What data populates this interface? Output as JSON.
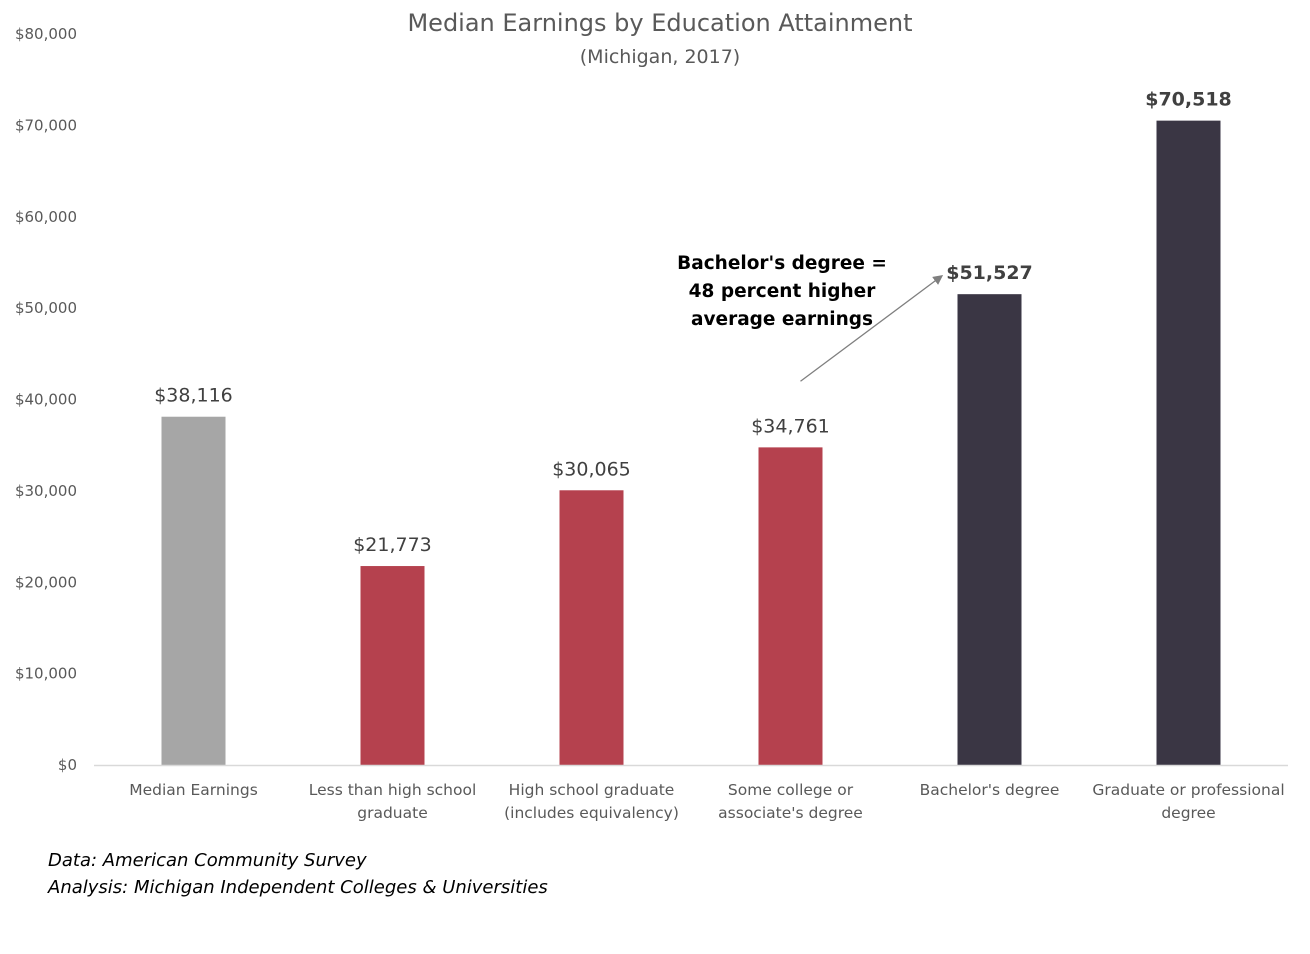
{
  "chart_data": {
    "type": "bar",
    "title": "Median Earnings by Education Attainment",
    "subtitle": "(Michigan, 2017)",
    "categories": [
      [
        "Median Earnings"
      ],
      [
        "Less than high school",
        "graduate"
      ],
      [
        "High school graduate",
        "(includes equivalency)"
      ],
      [
        "Some college or",
        "associate's degree"
      ],
      [
        "Bachelor's degree"
      ],
      [
        "Graduate or professional",
        "degree"
      ]
    ],
    "values": [
      38116,
      21773,
      30065,
      34761,
      51527,
      70518
    ],
    "data_labels": [
      "$38,116",
      "$21,773",
      "$30,065",
      "$34,761",
      "$51,527",
      "$70,518"
    ],
    "bold_labels": [
      false,
      false,
      false,
      false,
      true,
      true
    ],
    "bar_colors": [
      "#a6a6a6",
      "#b5414e",
      "#b5414e",
      "#b5414e",
      "#3a3644",
      "#3a3644"
    ],
    "ylim": [
      0,
      80000
    ],
    "yticks": [
      0,
      10000,
      20000,
      30000,
      40000,
      50000,
      60000,
      70000,
      80000
    ],
    "ytick_labels": [
      "$0",
      "$10,000",
      "$20,000",
      "$30,000",
      "$40,000",
      "$50,000",
      "$60,000",
      "$70,000",
      "$80,000"
    ],
    "grid": false,
    "legend": "none",
    "annotation": {
      "lines": [
        "Bachelor's degree =",
        "48 percent higher",
        "average earnings"
      ],
      "arrow_from": {
        "category_index": 3,
        "value": 42000
      },
      "arrow_to": {
        "category_index": 4,
        "value": 53500
      }
    }
  },
  "footnotes": {
    "data_source": "Data: American Community Survey",
    "analysis": "Analysis: Michigan Independent Colleges & Universities"
  }
}
